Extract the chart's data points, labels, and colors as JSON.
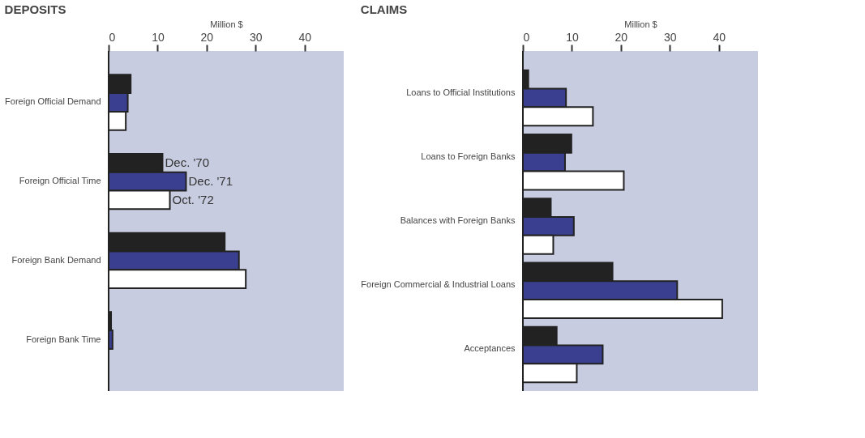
{
  "chart_data": [
    {
      "type": "bar",
      "orientation": "horizontal",
      "title": "DEPOSITS",
      "xlabel": "Million $",
      "categories": [
        "Foreign Official Demand",
        "Foreign Official Time",
        "Foreign Bank Demand",
        "Foreign Bank Time"
      ],
      "series": [
        {
          "name": "Dec. '70",
          "color": "#222222",
          "values": [
            4.5,
            11,
            23.7,
            0.5
          ]
        },
        {
          "name": "Dec. '71",
          "color": "#3a3f8f",
          "values": [
            3.9,
            15.8,
            26.6,
            0.8
          ]
        },
        {
          "name": "Oct. '72",
          "color": "#ffffff",
          "values": [
            3.5,
            12.5,
            28,
            null
          ]
        }
      ],
      "xlim": [
        0,
        48
      ],
      "xticks": [
        0,
        10,
        20,
        30,
        40
      ]
    },
    {
      "type": "bar",
      "orientation": "horizontal",
      "title": "CLAIMS",
      "xlabel": "Million $",
      "categories": [
        "Loans to Official Institutions",
        "Loans to Foreign Banks",
        "Balances with Foreign Banks",
        "Foreign Commercial & Industrial Loans",
        "Acceptances"
      ],
      "series": [
        {
          "color": "#222222",
          "values": [
            1.1,
            9.9,
            5.7,
            18.3,
            6.9
          ]
        },
        {
          "color": "#3a3f8f",
          "values": [
            8.8,
            8.6,
            10.4,
            31.5,
            16.3
          ]
        },
        {
          "color": "#ffffff",
          "values": [
            14.3,
            20.6,
            6.2,
            40.7,
            11
          ]
        }
      ],
      "xlim": [
        0,
        48
      ],
      "xticks": [
        0,
        10,
        20,
        30,
        40
      ]
    }
  ]
}
